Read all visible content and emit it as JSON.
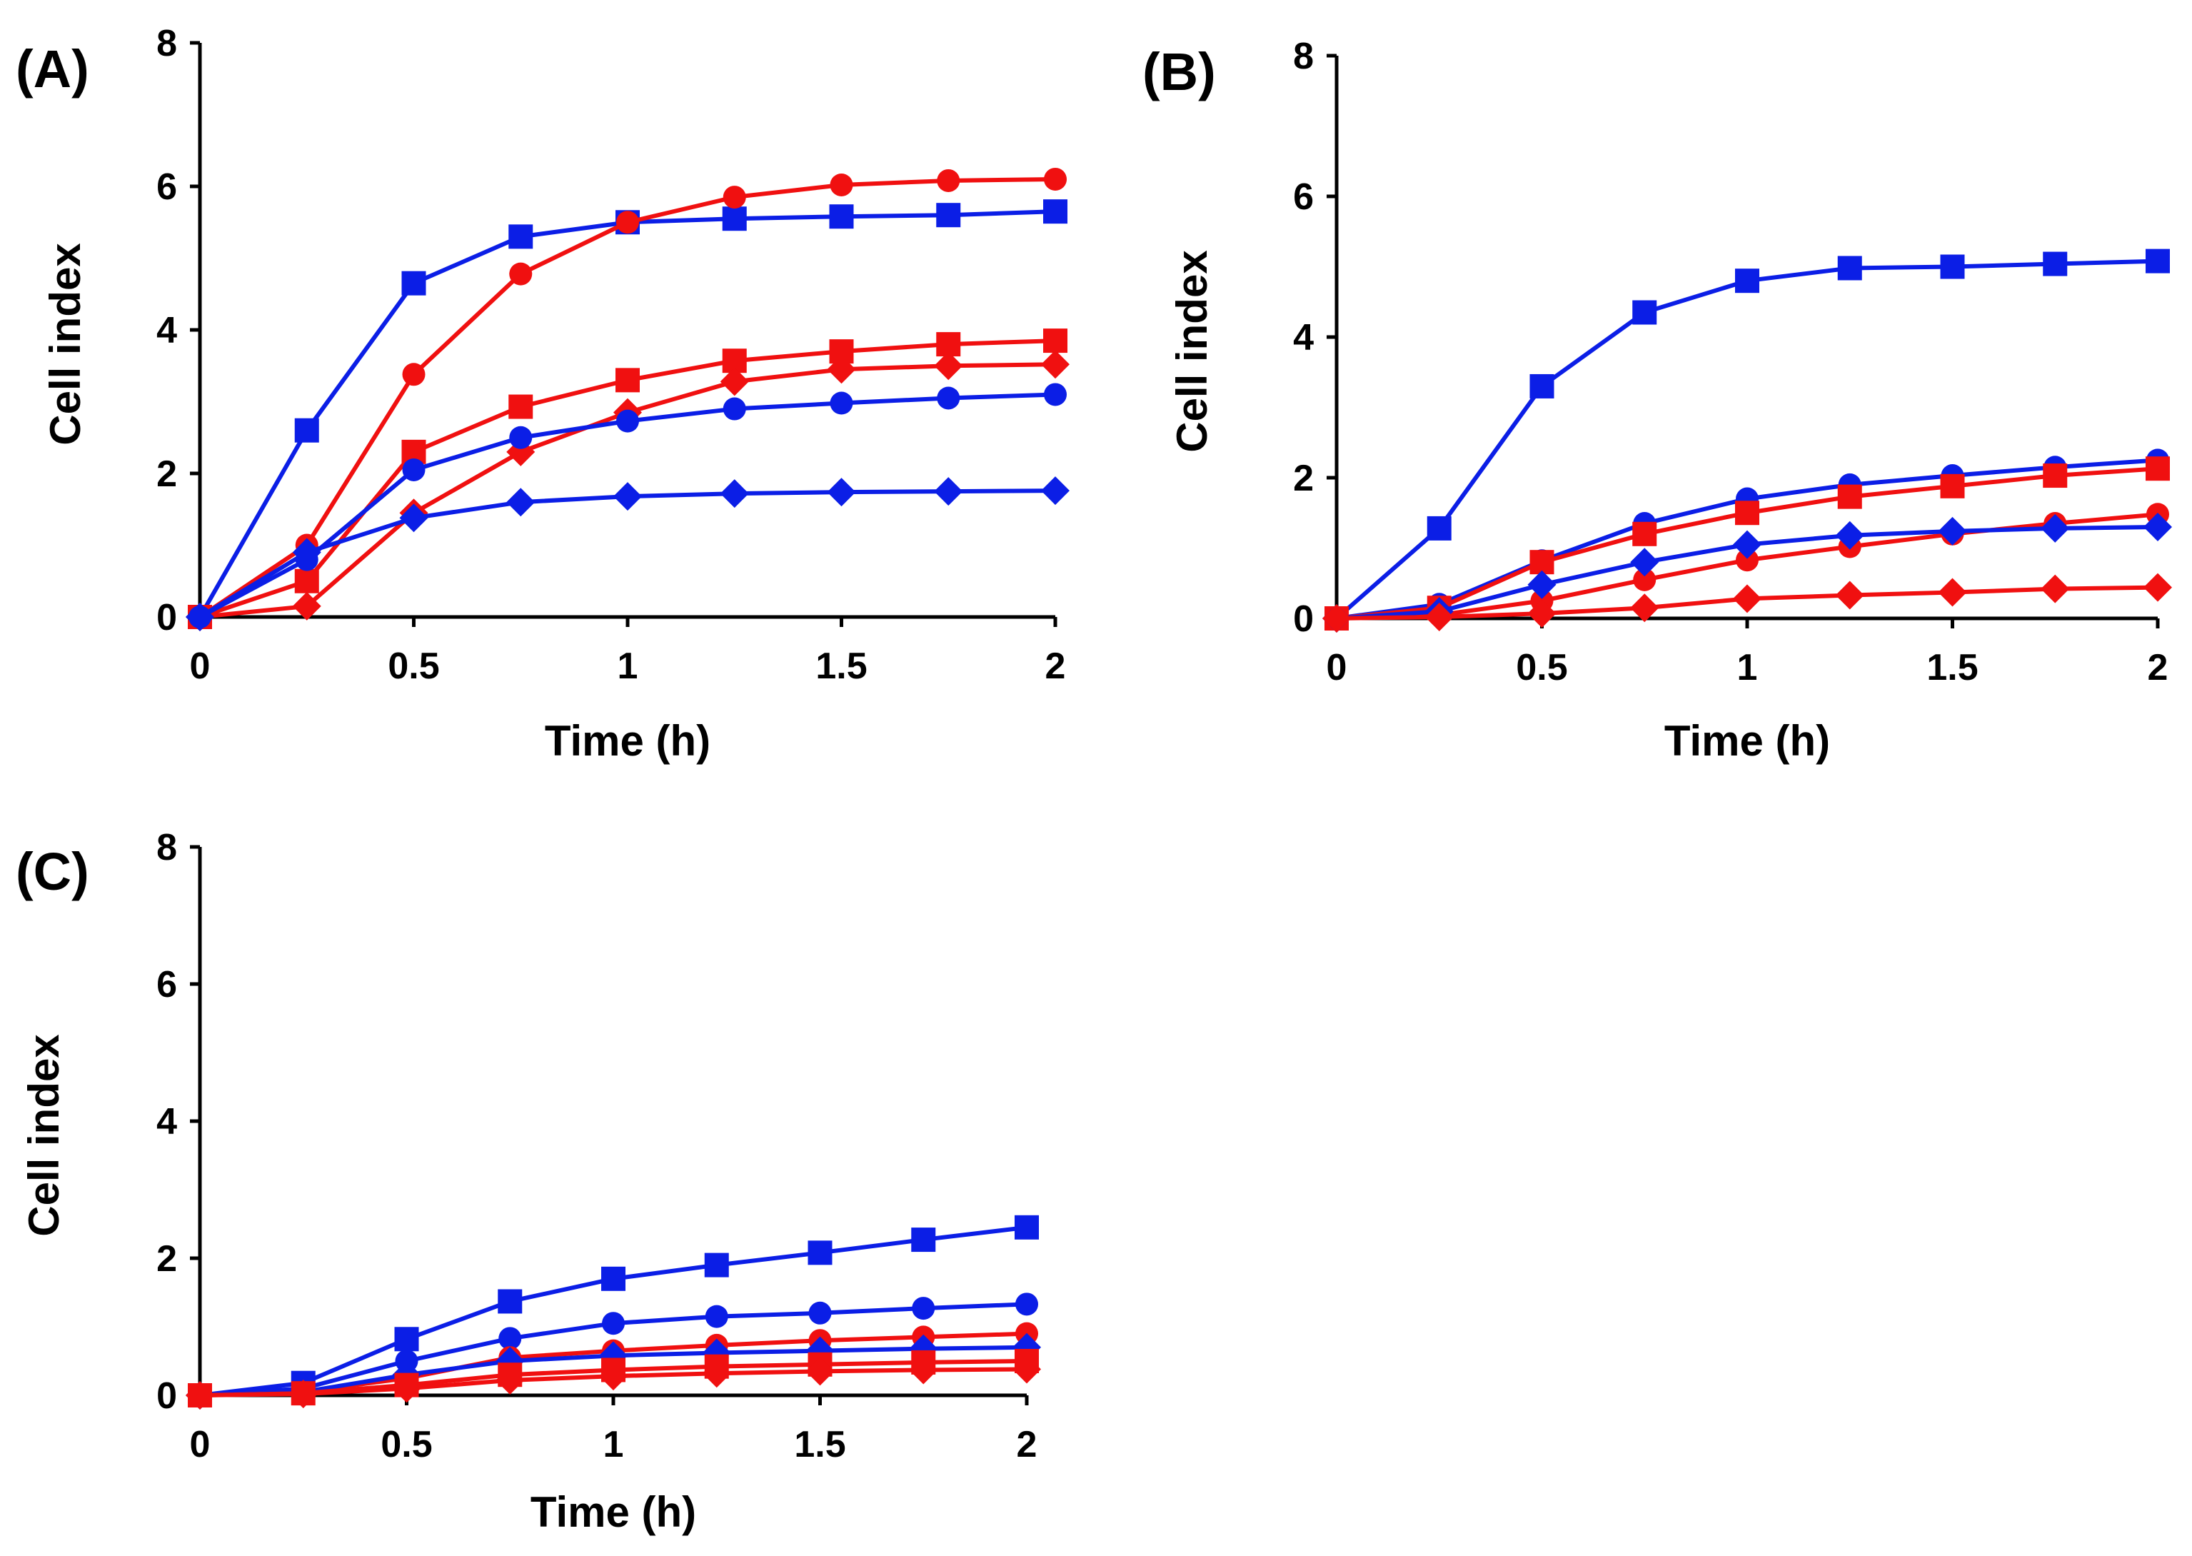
{
  "colors": {
    "series_blue": "#0b1ee6",
    "series_red": "#f01010",
    "axis": "#000000"
  },
  "chart_data": [
    {
      "type": "line",
      "panel_label": "(A)",
      "xlabel": "Time (h)",
      "ylabel": "Cell index",
      "xlim": [
        0,
        2
      ],
      "ylim": [
        0,
        8
      ],
      "x_ticks": [
        0,
        0.5,
        1,
        1.5,
        2
      ],
      "x_tick_labels": [
        "0",
        "0.5",
        "1",
        "1.5",
        "2"
      ],
      "y_ticks": [
        0,
        2,
        4,
        6,
        8
      ],
      "y_tick_labels": [
        "0",
        "2",
        "4",
        "6",
        "8"
      ],
      "grid": false,
      "x": [
        0,
        0.25,
        0.5,
        0.75,
        1,
        1.25,
        1.5,
        1.75,
        2
      ],
      "series": [
        {
          "color": "blue",
          "marker": "square",
          "values": [
            0,
            2.6,
            4.65,
            5.3,
            5.5,
            5.55,
            5.58,
            5.6,
            5.65
          ]
        },
        {
          "color": "red",
          "marker": "circle",
          "values": [
            0,
            1.0,
            3.38,
            4.78,
            5.5,
            5.85,
            6.02,
            6.08,
            6.1
          ]
        },
        {
          "color": "red",
          "marker": "square",
          "values": [
            0,
            0.5,
            2.3,
            2.93,
            3.3,
            3.57,
            3.7,
            3.8,
            3.85
          ]
        },
        {
          "color": "red",
          "marker": "diamond",
          "values": [
            0,
            0.15,
            1.45,
            2.3,
            2.85,
            3.28,
            3.45,
            3.5,
            3.52
          ]
        },
        {
          "color": "blue",
          "marker": "circle",
          "values": [
            0,
            0.8,
            2.05,
            2.5,
            2.73,
            2.9,
            2.98,
            3.05,
            3.1
          ]
        },
        {
          "color": "blue",
          "marker": "diamond",
          "values": [
            0,
            0.9,
            1.38,
            1.6,
            1.68,
            1.72,
            1.74,
            1.75,
            1.76
          ]
        }
      ]
    },
    {
      "type": "line",
      "panel_label": "(B)",
      "xlabel": "Time (h)",
      "ylabel": "Cell index",
      "xlim": [
        0,
        2
      ],
      "ylim": [
        0,
        8
      ],
      "x_ticks": [
        0,
        0.5,
        1,
        1.5,
        2
      ],
      "x_tick_labels": [
        "0",
        "0.5",
        "1",
        "1.5",
        "2"
      ],
      "y_ticks": [
        0,
        2,
        4,
        6,
        8
      ],
      "y_tick_labels": [
        "0",
        "2",
        "4",
        "6",
        "8"
      ],
      "grid": false,
      "x": [
        0,
        0.25,
        0.5,
        0.75,
        1,
        1.25,
        1.5,
        1.75,
        2
      ],
      "series": [
        {
          "color": "blue",
          "marker": "square",
          "values": [
            0,
            1.28,
            3.3,
            4.35,
            4.8,
            4.98,
            5.0,
            5.04,
            5.08
          ]
        },
        {
          "color": "blue",
          "marker": "circle",
          "values": [
            0,
            0.2,
            0.82,
            1.35,
            1.7,
            1.9,
            2.03,
            2.15,
            2.25
          ]
        },
        {
          "color": "red",
          "marker": "square",
          "values": [
            0,
            0.15,
            0.8,
            1.2,
            1.5,
            1.73,
            1.88,
            2.03,
            2.13
          ]
        },
        {
          "color": "red",
          "marker": "circle",
          "values": [
            0,
            0.05,
            0.25,
            0.55,
            0.83,
            1.02,
            1.2,
            1.35,
            1.48
          ]
        },
        {
          "color": "blue",
          "marker": "diamond",
          "values": [
            0,
            0.1,
            0.48,
            0.8,
            1.05,
            1.18,
            1.24,
            1.28,
            1.3
          ]
        },
        {
          "color": "red",
          "marker": "diamond",
          "values": [
            0,
            0.02,
            0.07,
            0.15,
            0.28,
            0.33,
            0.37,
            0.42,
            0.44
          ]
        }
      ]
    },
    {
      "type": "line",
      "panel_label": "(C)",
      "xlabel": "Time (h)",
      "ylabel": "Cell index",
      "xlim": [
        0,
        2
      ],
      "ylim": [
        0,
        8
      ],
      "x_ticks": [
        0,
        0.5,
        1,
        1.5,
        2
      ],
      "x_tick_labels": [
        "0",
        "0.5",
        "1",
        "1.5",
        "2"
      ],
      "y_ticks": [
        0,
        2,
        4,
        6,
        8
      ],
      "y_tick_labels": [
        "0",
        "2",
        "4",
        "6",
        "8"
      ],
      "grid": false,
      "x": [
        0,
        0.25,
        0.5,
        0.75,
        1,
        1.25,
        1.5,
        1.75,
        2
      ],
      "series": [
        {
          "color": "blue",
          "marker": "square",
          "values": [
            0,
            0.18,
            0.82,
            1.37,
            1.7,
            1.9,
            2.08,
            2.27,
            2.45
          ]
        },
        {
          "color": "blue",
          "marker": "circle",
          "values": [
            0,
            0.1,
            0.5,
            0.83,
            1.05,
            1.15,
            1.2,
            1.27,
            1.33
          ]
        },
        {
          "color": "red",
          "marker": "circle",
          "values": [
            0,
            0.05,
            0.25,
            0.55,
            0.65,
            0.73,
            0.8,
            0.85,
            0.9
          ]
        },
        {
          "color": "blue",
          "marker": "diamond",
          "values": [
            0,
            0.05,
            0.3,
            0.5,
            0.58,
            0.62,
            0.65,
            0.68,
            0.7
          ]
        },
        {
          "color": "red",
          "marker": "square",
          "values": [
            0,
            0.03,
            0.15,
            0.3,
            0.37,
            0.42,
            0.45,
            0.48,
            0.5
          ]
        },
        {
          "color": "red",
          "marker": "diamond",
          "values": [
            0,
            0.02,
            0.1,
            0.22,
            0.28,
            0.32,
            0.35,
            0.37,
            0.38
          ]
        }
      ]
    }
  ]
}
